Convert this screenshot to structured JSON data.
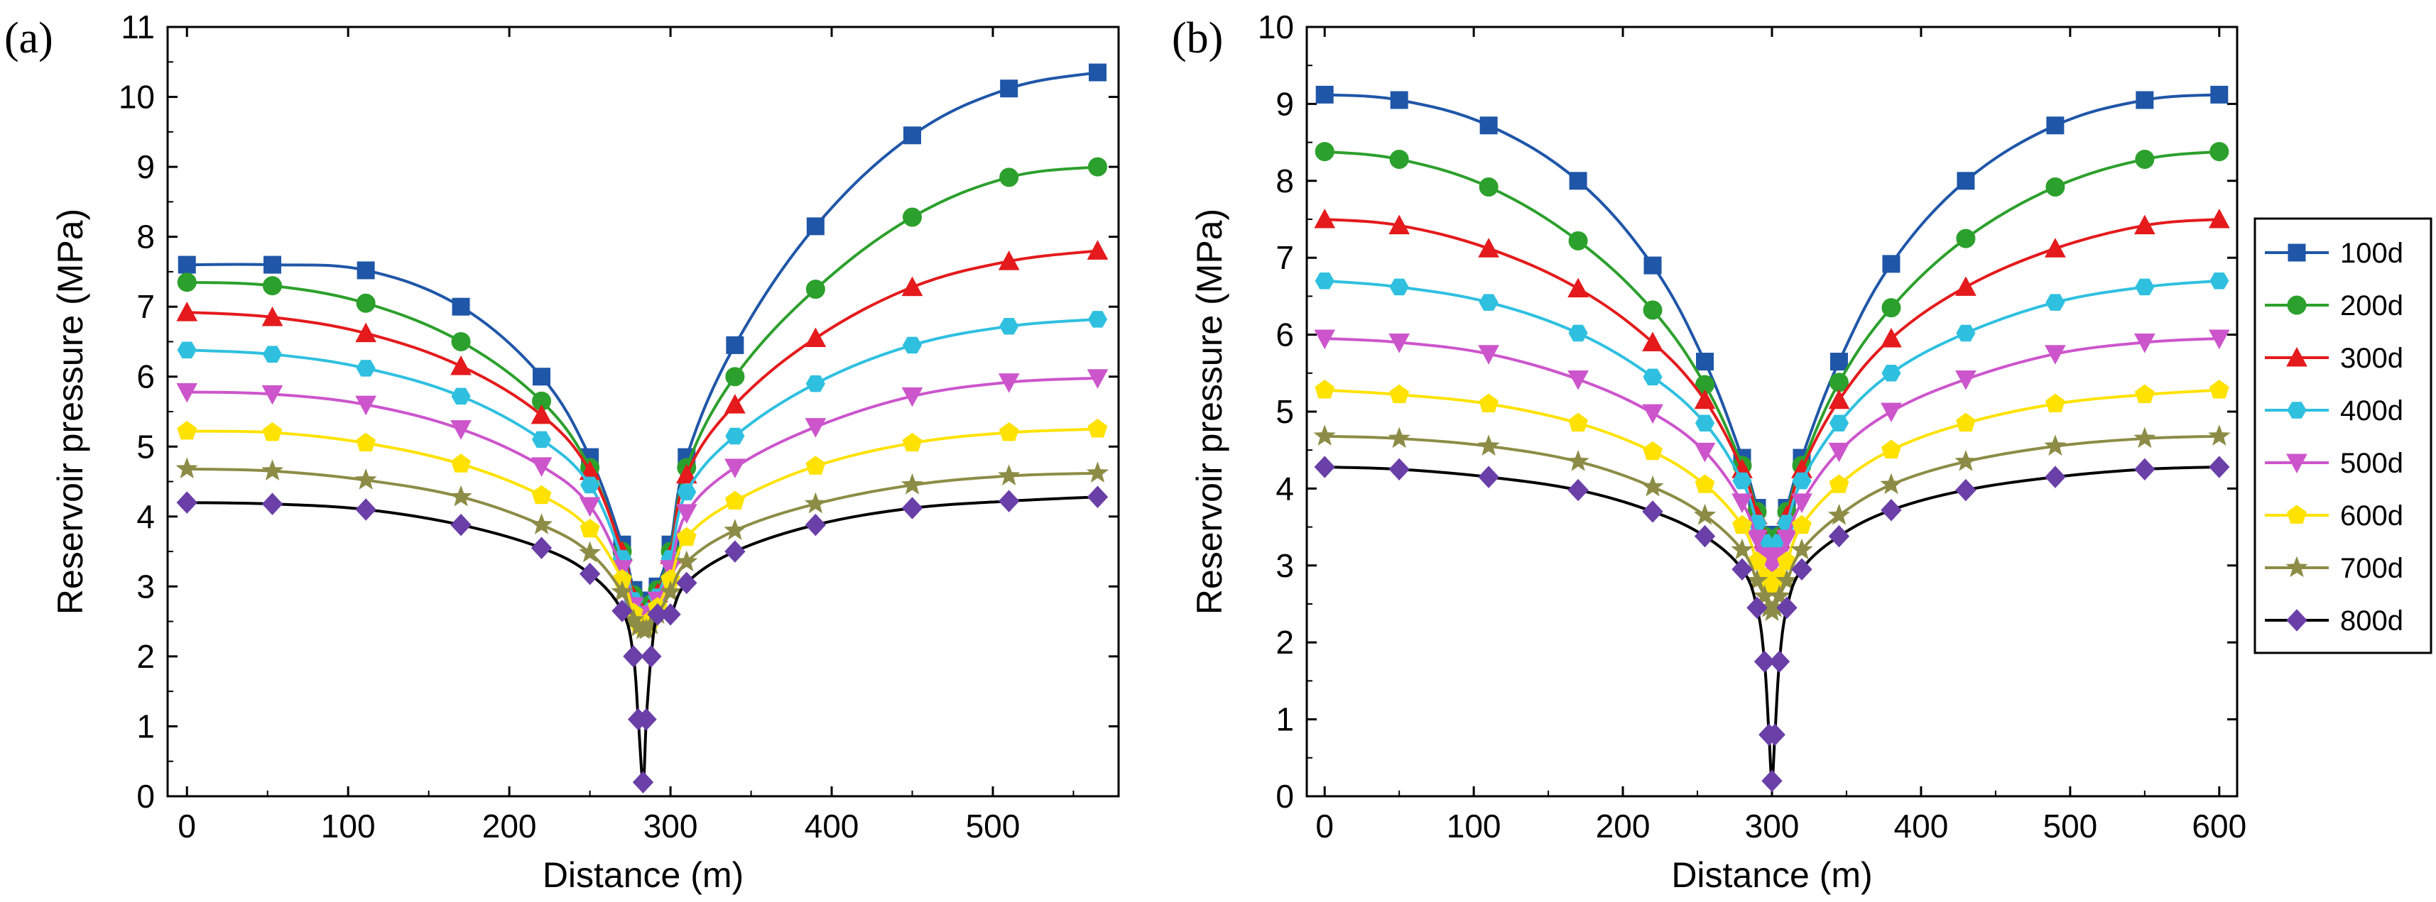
{
  "chart_data": [
    {
      "type": "line",
      "panel_label": "(a)",
      "xlabel": "Distance (m)",
      "ylabel": "Reservoir pressure (MPa)",
      "xlim": [
        -12,
        578
      ],
      "ylim": [
        0,
        11
      ],
      "xticks": [
        0,
        100,
        200,
        300,
        400,
        500
      ],
      "yticks": [
        0,
        1,
        2,
        3,
        4,
        5,
        6,
        7,
        8,
        9,
        10,
        11
      ],
      "x": [
        0,
        53,
        111,
        170,
        220,
        250,
        270,
        277,
        280,
        283,
        285,
        288,
        292,
        300,
        310,
        340,
        390,
        450,
        510,
        565
      ],
      "series": [
        {
          "name": "100d",
          "color": "#1f56a8",
          "marker": "square",
          "values": [
            7.6,
            7.6,
            7.52,
            7.0,
            6.0,
            4.85,
            3.6,
            2.95,
            2.75,
            2.7,
            2.7,
            2.8,
            3.0,
            3.6,
            4.85,
            6.45,
            8.15,
            9.45,
            10.12,
            10.35
          ]
        },
        {
          "name": "200d",
          "color": "#2ca02c",
          "marker": "circle",
          "values": [
            7.35,
            7.3,
            7.05,
            6.5,
            5.65,
            4.7,
            3.5,
            2.88,
            2.68,
            2.65,
            2.65,
            2.75,
            2.95,
            3.5,
            4.7,
            6.0,
            7.25,
            8.28,
            8.85,
            9.0
          ]
        },
        {
          "name": "300d",
          "color": "#e41a1c",
          "marker": "triangle-up",
          "values": [
            6.92,
            6.85,
            6.62,
            6.15,
            5.45,
            4.65,
            3.5,
            2.85,
            2.65,
            2.6,
            2.6,
            2.7,
            2.9,
            3.45,
            4.6,
            5.6,
            6.55,
            7.28,
            7.65,
            7.8
          ]
        },
        {
          "name": "400d",
          "color": "#2fc0e0",
          "marker": "hexagon",
          "values": [
            6.38,
            6.32,
            6.12,
            5.72,
            5.1,
            4.45,
            3.4,
            2.8,
            2.6,
            2.55,
            2.55,
            2.65,
            2.85,
            3.4,
            4.35,
            5.15,
            5.9,
            6.45,
            6.72,
            6.82
          ]
        },
        {
          "name": "500d",
          "color": "#cc55cc",
          "marker": "triangle-down",
          "values": [
            5.78,
            5.75,
            5.6,
            5.25,
            4.72,
            4.15,
            3.25,
            2.72,
            2.55,
            2.5,
            2.5,
            2.6,
            2.8,
            3.25,
            4.05,
            4.7,
            5.28,
            5.72,
            5.92,
            5.98
          ]
        },
        {
          "name": "600d",
          "color": "#ffe200",
          "marker": "pentagon",
          "values": [
            5.22,
            5.2,
            5.05,
            4.75,
            4.3,
            3.82,
            3.1,
            2.62,
            2.48,
            2.42,
            2.42,
            2.52,
            2.7,
            3.1,
            3.7,
            4.22,
            4.72,
            5.05,
            5.2,
            5.25
          ]
        },
        {
          "name": "700d",
          "color": "#8c8c46",
          "marker": "star",
          "values": [
            4.68,
            4.65,
            4.52,
            4.28,
            3.88,
            3.48,
            2.92,
            2.52,
            2.42,
            2.38,
            2.38,
            2.45,
            2.6,
            2.92,
            3.35,
            3.8,
            4.18,
            4.45,
            4.58,
            4.62
          ]
        },
        {
          "name": "800d",
          "color": "#6a3fa8",
          "marker": "diamond",
          "values": [
            4.2,
            4.18,
            4.1,
            3.88,
            3.55,
            3.18,
            2.65,
            2.0,
            1.1,
            0.2,
            1.1,
            2.0,
            2.6,
            2.6,
            3.05,
            3.5,
            3.88,
            4.12,
            4.22,
            4.28
          ]
        }
      ]
    },
    {
      "type": "line",
      "panel_label": "(b)",
      "xlabel": "Distance (m)",
      "ylabel": "Reservoir pressure (MPa)",
      "xlim": [
        -12,
        612
      ],
      "ylim": [
        0,
        10
      ],
      "xticks": [
        0,
        100,
        200,
        300,
        400,
        500,
        600
      ],
      "yticks": [
        0,
        1,
        2,
        3,
        4,
        5,
        6,
        7,
        8,
        9,
        10
      ],
      "x": [
        0,
        50,
        110,
        170,
        220,
        255,
        280,
        290,
        295,
        298,
        300,
        302,
        305,
        310,
        320,
        345,
        380,
        430,
        490,
        550,
        600
      ],
      "series": [
        {
          "name": "100d",
          "color": "#1f56a8",
          "marker": "square",
          "values": [
            9.12,
            9.05,
            8.72,
            8.0,
            6.9,
            5.65,
            4.4,
            3.75,
            3.4,
            3.3,
            3.28,
            3.3,
            3.4,
            3.75,
            4.4,
            5.65,
            6.92,
            8.0,
            8.72,
            9.05,
            9.12
          ]
        },
        {
          "name": "200d",
          "color": "#2ca02c",
          "marker": "circle",
          "values": [
            8.38,
            8.28,
            7.92,
            7.22,
            6.32,
            5.35,
            4.3,
            3.7,
            3.38,
            3.28,
            3.25,
            3.28,
            3.38,
            3.7,
            4.3,
            5.38,
            6.35,
            7.25,
            7.92,
            8.28,
            8.38
          ]
        },
        {
          "name": "300d",
          "color": "#e41a1c",
          "marker": "triangle-up",
          "values": [
            7.5,
            7.42,
            7.12,
            6.6,
            5.9,
            5.15,
            4.25,
            3.65,
            3.35,
            3.25,
            3.22,
            3.25,
            3.35,
            3.65,
            4.25,
            5.15,
            5.95,
            6.62,
            7.12,
            7.42,
            7.5
          ]
        },
        {
          "name": "400d",
          "color": "#2fc0e0",
          "marker": "hexagon",
          "values": [
            6.7,
            6.62,
            6.42,
            6.02,
            5.45,
            4.85,
            4.1,
            3.55,
            3.3,
            3.2,
            3.18,
            3.2,
            3.3,
            3.55,
            4.1,
            4.85,
            5.5,
            6.02,
            6.42,
            6.62,
            6.7
          ]
        },
        {
          "name": "500d",
          "color": "#cc55cc",
          "marker": "triangle-down",
          "values": [
            5.95,
            5.9,
            5.75,
            5.42,
            4.98,
            4.48,
            3.82,
            3.35,
            3.12,
            3.05,
            3.02,
            3.05,
            3.12,
            3.35,
            3.82,
            4.48,
            5.0,
            5.42,
            5.75,
            5.9,
            5.95
          ]
        },
        {
          "name": "600d",
          "color": "#ffe200",
          "marker": "pentagon",
          "values": [
            5.28,
            5.22,
            5.1,
            4.85,
            4.48,
            4.05,
            3.52,
            3.05,
            2.85,
            2.78,
            2.75,
            2.78,
            2.85,
            3.05,
            3.52,
            4.05,
            4.5,
            4.85,
            5.1,
            5.22,
            5.28
          ]
        },
        {
          "name": "700d",
          "color": "#8c8c46",
          "marker": "star",
          "values": [
            4.68,
            4.65,
            4.55,
            4.35,
            4.02,
            3.65,
            3.2,
            2.8,
            2.6,
            2.45,
            2.4,
            2.45,
            2.6,
            2.8,
            3.2,
            3.65,
            4.05,
            4.35,
            4.55,
            4.65,
            4.68
          ]
        },
        {
          "name": "800d",
          "color": "#6a3fa8",
          "marker": "diamond",
          "values": [
            4.28,
            4.25,
            4.15,
            3.98,
            3.7,
            3.38,
            2.95,
            2.45,
            1.75,
            0.8,
            0.2,
            0.8,
            1.75,
            2.45,
            2.95,
            3.38,
            3.72,
            3.98,
            4.15,
            4.25,
            4.28
          ]
        }
      ]
    }
  ],
  "legend": {
    "placement": "right of panel (b)",
    "entries": [
      "100d",
      "200d",
      "300d",
      "400d",
      "500d",
      "600d",
      "700d",
      "800d"
    ]
  }
}
